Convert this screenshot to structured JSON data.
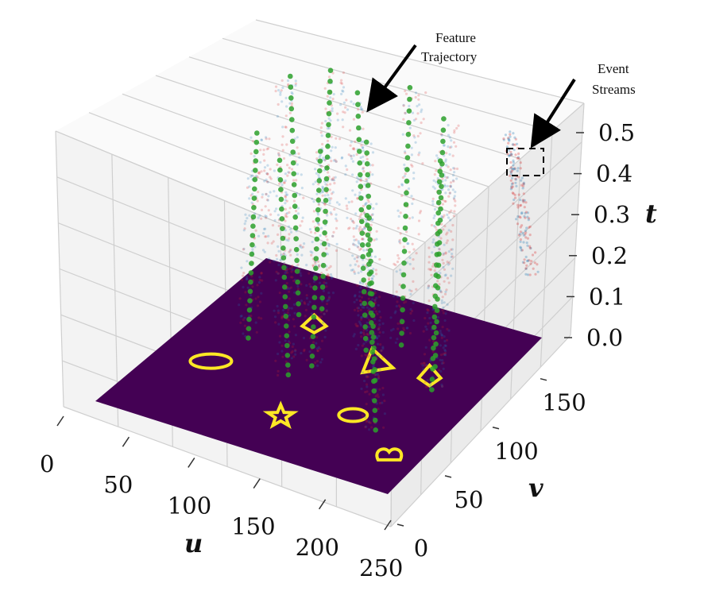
{
  "chart_data": {
    "type": "scatter",
    "projection": "3d",
    "xlabel": "u",
    "ylabel": "v",
    "zlabel": "t",
    "xlim": [
      0,
      250
    ],
    "ylim": [
      0,
      180
    ],
    "zlim": [
      0,
      0.55
    ],
    "u_ticks": [
      0,
      50,
      100,
      150,
      200,
      250
    ],
    "v_ticks": [
      0,
      50,
      100,
      150
    ],
    "t_ticks": [
      "0.0",
      "0.1",
      "0.2",
      "0.3",
      "0.4",
      "0.5"
    ],
    "grid": true,
    "colors": {
      "positive_events": "#d62728",
      "negative_events": "#1f77b4",
      "feature_points": "#2ca02c",
      "floor": "#440154",
      "floor_edges": "#fde725"
    },
    "annotations": [
      {
        "lines": [
          "Feature",
          "Trajectory"
        ]
      },
      {
        "lines": [
          "Event",
          "Streams"
        ]
      }
    ],
    "feature_trajectories": [
      {
        "u": 48,
        "v": 102,
        "t_range": [
          0,
          0.43
        ]
      },
      {
        "u": 62,
        "v": 138,
        "t_range": [
          0,
          0.5
        ]
      },
      {
        "u": 72,
        "v": 150,
        "t_range": [
          0,
          0.5
        ]
      },
      {
        "u": 100,
        "v": 80,
        "t_range": [
          0,
          0.45
        ]
      },
      {
        "u": 108,
        "v": 95,
        "t_range": [
          0,
          0.45
        ]
      },
      {
        "u": 130,
        "v": 125,
        "t_range": [
          0,
          0.54
        ]
      },
      {
        "u": 148,
        "v": 140,
        "t_range": [
          0,
          0.54
        ]
      },
      {
        "u": 158,
        "v": 100,
        "t_range": [
          0,
          0.5
        ]
      },
      {
        "u": 185,
        "v": 130,
        "t_range": [
          0,
          0.52
        ]
      },
      {
        "u": 195,
        "v": 55,
        "t_range": [
          0,
          0.45
        ]
      },
      {
        "u": 200,
        "v": 108,
        "t_range": [
          0,
          0.48
        ]
      }
    ]
  }
}
